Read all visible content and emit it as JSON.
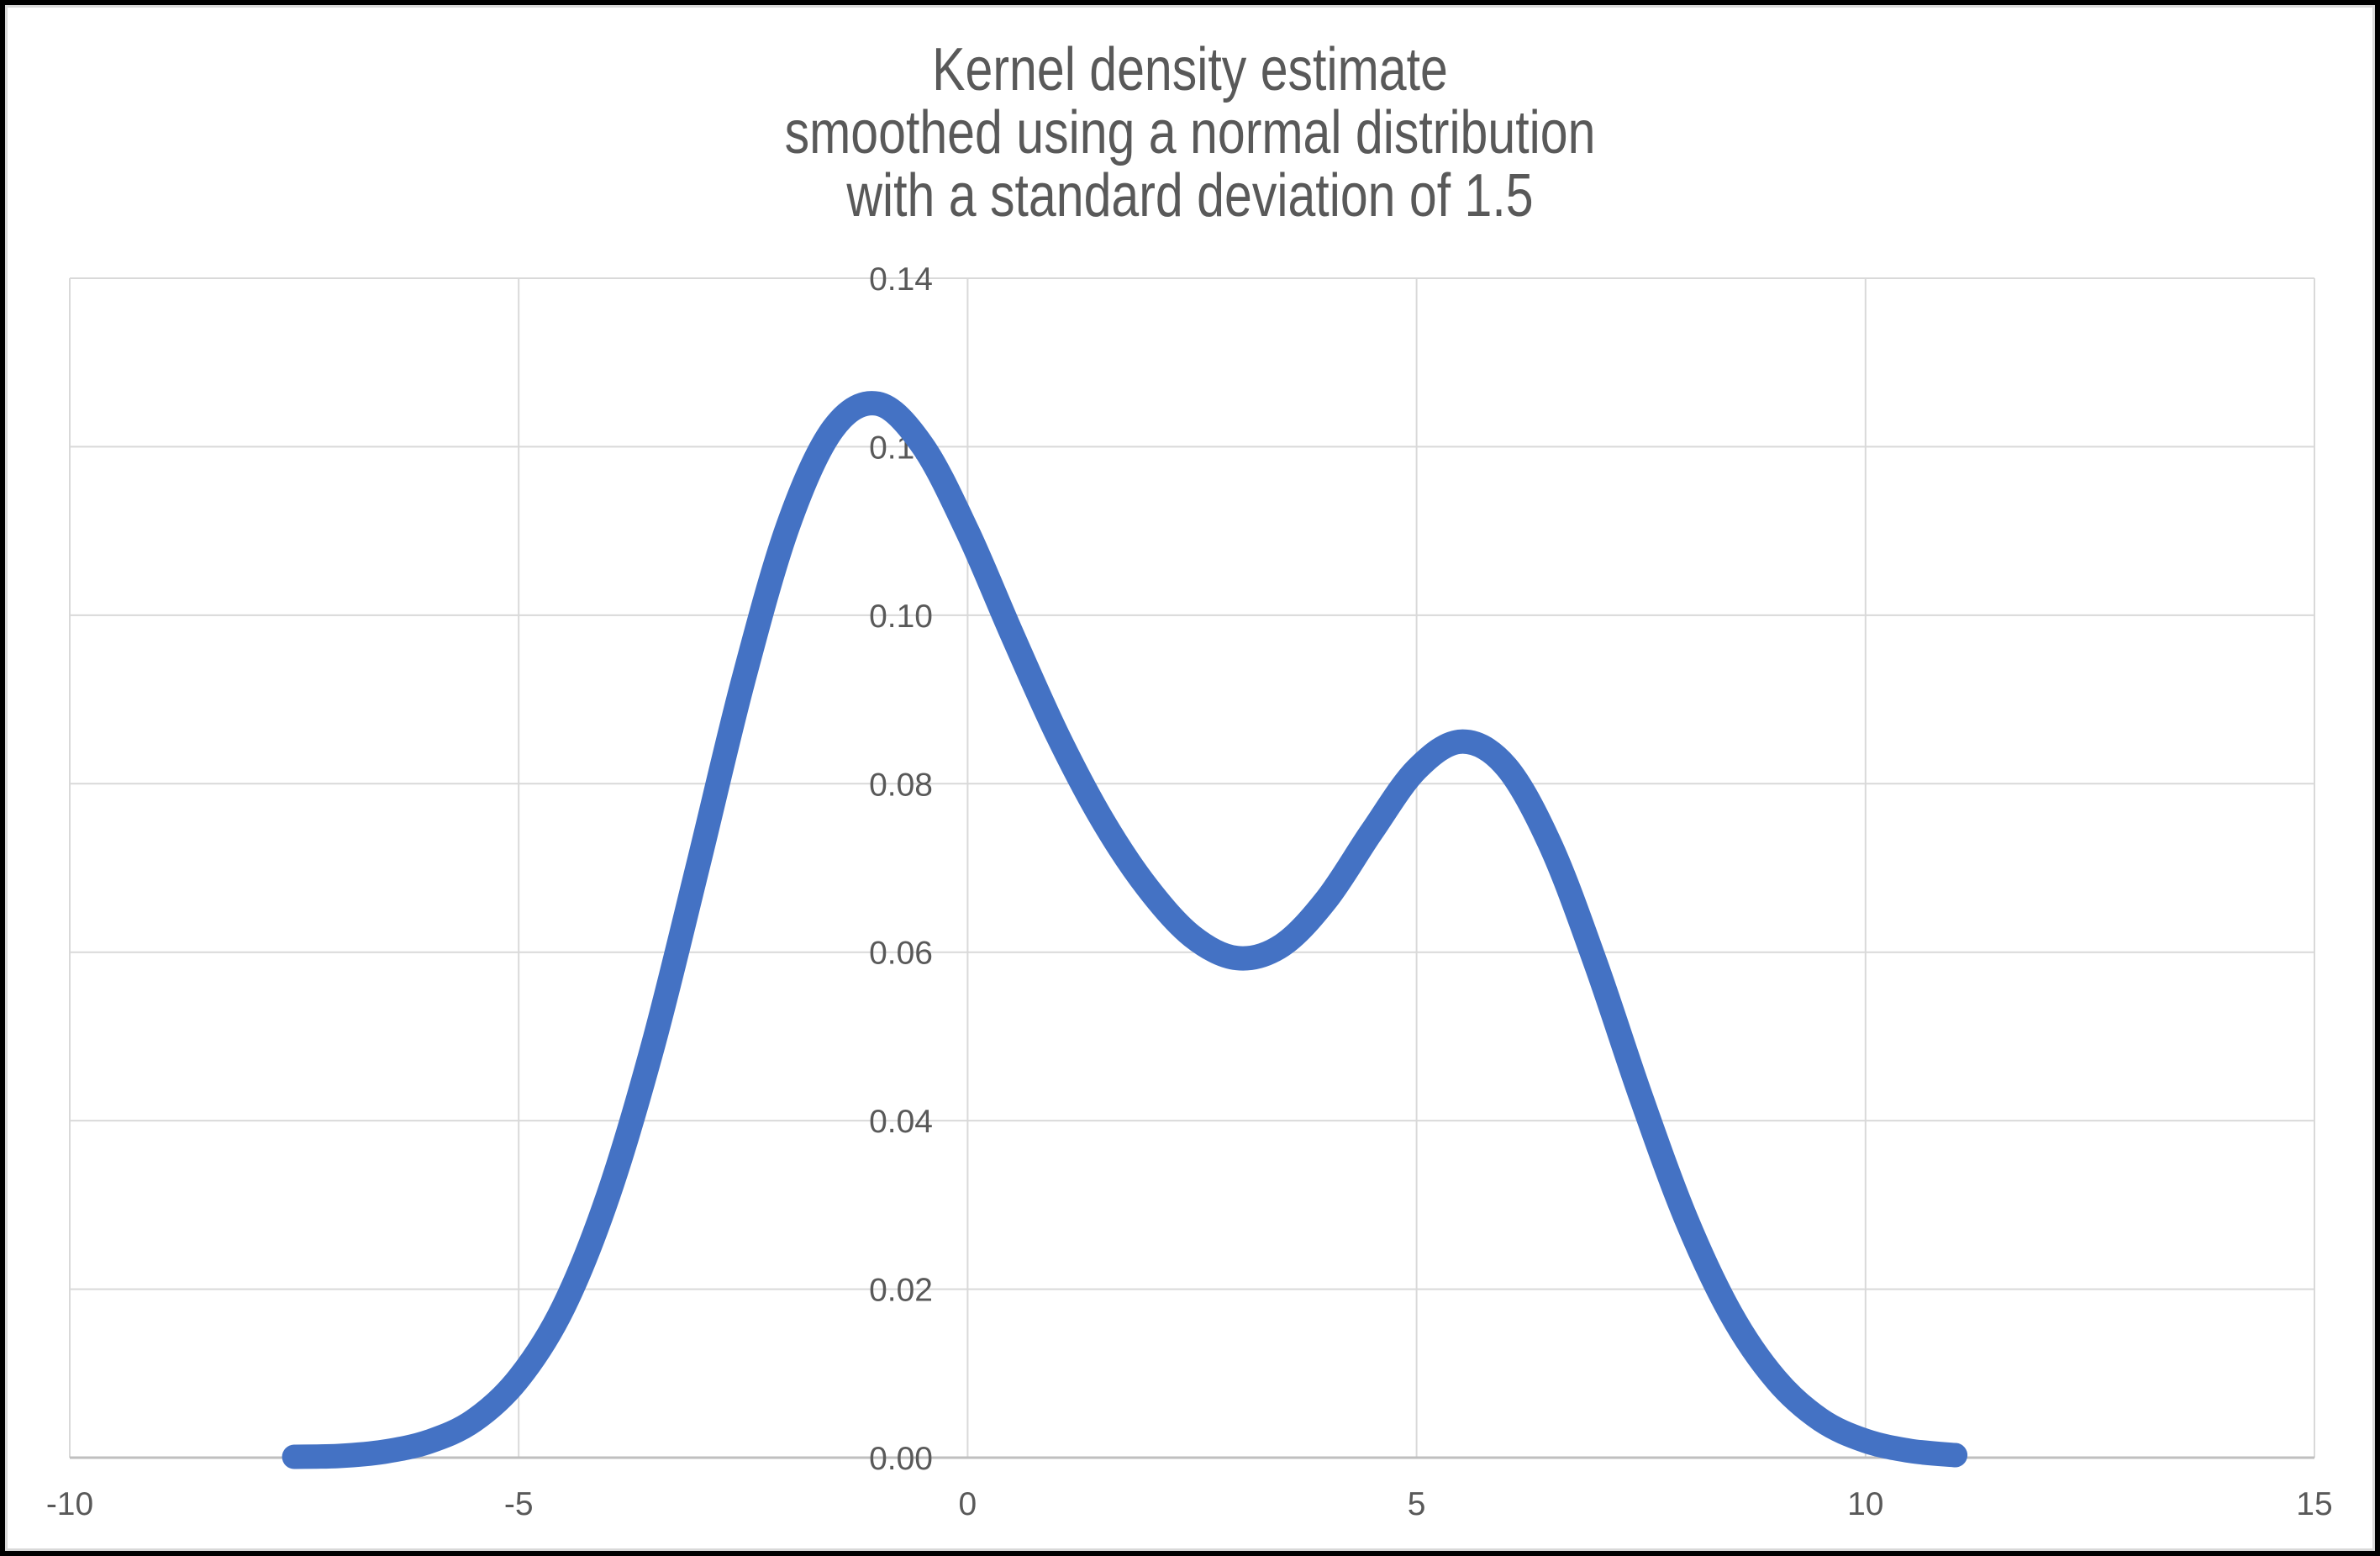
{
  "title": {
    "lines": [
      "Kernel density estimate",
      "smoothed using a normal distribution",
      "with a standard deviation of 1.5"
    ]
  },
  "colors": {
    "series": "#4472C4",
    "gridline": "#D9D9D9",
    "axis_line": "#BFBFBF",
    "label_text": "#595959",
    "title_text": "#595959",
    "background": "#FFFFFF",
    "frame": "#000000"
  },
  "chart_data": {
    "type": "line",
    "title": "Kernel density estimate smoothed using a normal distribution with a standard deviation of 1.5",
    "xlabel": "",
    "ylabel": "",
    "xlim": [
      -10,
      15
    ],
    "ylim": [
      0,
      0.14
    ],
    "grid": true,
    "legend": false,
    "x_ticks": [
      -10,
      -5,
      0,
      5,
      10,
      15
    ],
    "x_tick_labels": [
      "-10",
      "-5",
      "0",
      "5",
      "10",
      "15"
    ],
    "y_ticks": [
      0.0,
      0.02,
      0.04,
      0.06,
      0.08,
      0.1,
      0.12,
      0.14
    ],
    "y_tick_labels": [
      "0.00",
      "0.02",
      "0.04",
      "0.06",
      "0.08",
      "0.10",
      "0.12",
      "0.14"
    ],
    "series": [
      {
        "name": "Kernel density estimate",
        "color": "#4472C4",
        "x": [
          -7.5,
          -7.0,
          -6.5,
          -6.0,
          -5.5,
          -5.0,
          -4.5,
          -4.0,
          -3.5,
          -3.0,
          -2.5,
          -2.0,
          -1.5,
          -1.0,
          -0.5,
          0.0,
          0.5,
          1.0,
          1.5,
          2.0,
          2.5,
          3.0,
          3.5,
          4.0,
          4.5,
          5.0,
          5.5,
          6.0,
          6.5,
          7.0,
          7.5,
          8.0,
          8.5,
          9.0,
          9.5,
          10.0,
          10.5,
          11.0
        ],
        "y": [
          0.0001,
          0.0002,
          0.0007,
          0.0019,
          0.0044,
          0.0094,
          0.0179,
          0.0312,
          0.0491,
          0.0704,
          0.0922,
          0.1106,
          0.1221,
          0.1251,
          0.1201,
          0.1099,
          0.0976,
          0.0858,
          0.0757,
          0.0677,
          0.0619,
          0.0593,
          0.0608,
          0.0663,
          0.0743,
          0.0817,
          0.085,
          0.082,
          0.0725,
          0.0585,
          0.0428,
          0.0284,
          0.0171,
          0.0093,
          0.0045,
          0.002,
          0.0008,
          0.0003
        ]
      }
    ],
    "annotations": {
      "peak_1": {
        "x": -1.0,
        "y": 0.125
      },
      "valley": {
        "x": 3.0,
        "y": 0.059
      },
      "peak_2": {
        "x": 5.5,
        "y": 0.085
      }
    }
  }
}
